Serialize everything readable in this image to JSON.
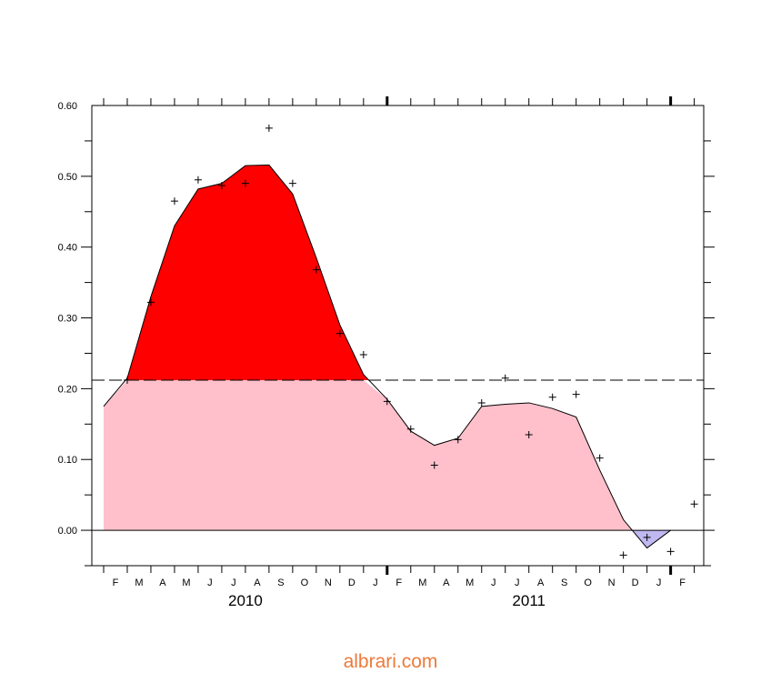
{
  "chart_data": {
    "type": "area",
    "title": "",
    "xlabel": "",
    "ylabel": "",
    "ylim": [
      -0.05,
      0.6
    ],
    "y_ticks": [
      "0.60",
      "0.50",
      "0.40",
      "0.30",
      "0.20",
      "0.10",
      "0.00"
    ],
    "month_labels": [
      "F",
      "M",
      "A",
      "M",
      "J",
      "J",
      "A",
      "S",
      "O",
      "N",
      "D",
      "J",
      "F",
      "M",
      "A",
      "M",
      "J",
      "J",
      "A",
      "S",
      "O",
      "N",
      "D",
      "J",
      "F"
    ],
    "year_labels": [
      "2010",
      "2011"
    ],
    "threshold": 0.212,
    "smoothed_series": {
      "x": [
        "2010-01",
        "2010-02",
        "2010-03",
        "2010-04",
        "2010-05",
        "2010-06",
        "2010-07",
        "2010-08",
        "2010-09",
        "2010-10",
        "2010-11",
        "2010-12",
        "2011-01",
        "2011-02",
        "2011-03",
        "2011-04",
        "2011-05",
        "2011-06",
        "2011-07",
        "2011-08",
        "2011-09",
        "2011-10",
        "2011-11",
        "2011-12",
        "2012-01"
      ],
      "values": [
        0.175,
        0.215,
        0.33,
        0.43,
        0.482,
        0.49,
        0.515,
        0.516,
        0.475,
        0.385,
        0.29,
        0.22,
        0.185,
        0.14,
        0.12,
        0.13,
        0.175,
        0.178,
        0.18,
        0.172,
        0.16,
        0.085,
        0.015,
        -0.025,
        0.0
      ]
    },
    "monthly_points": {
      "x": [
        "2010-02",
        "2010-03",
        "2010-04",
        "2010-05",
        "2010-06",
        "2010-07",
        "2010-08",
        "2010-09",
        "2010-10",
        "2010-11",
        "2010-12",
        "2011-01",
        "2011-02",
        "2011-03",
        "2011-04",
        "2011-05",
        "2011-06",
        "2011-07",
        "2011-08",
        "2011-09",
        "2011-10",
        "2011-11",
        "2011-12",
        "2012-01",
        "2012-02"
      ],
      "values": [
        0.212,
        0.322,
        0.465,
        0.495,
        0.487,
        0.49,
        0.568,
        0.49,
        0.368,
        0.278,
        0.248,
        0.182,
        0.143,
        0.092,
        0.128,
        0.18,
        0.215,
        0.135,
        0.188,
        0.192,
        0.102,
        -0.035,
        -0.01,
        -0.03,
        0.037
      ]
    },
    "colors": {
      "above_threshold": "#ff0000",
      "positive": "#ffc0cb",
      "negative": "#c0b8f0",
      "line": "#000000"
    },
    "grid": false,
    "legend": "none"
  },
  "watermark": "albrari.com"
}
